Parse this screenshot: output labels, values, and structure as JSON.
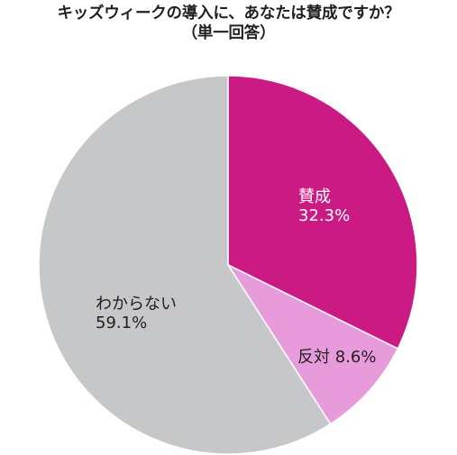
{
  "chart_data": {
    "type": "pie",
    "title": "キッズウィークの導入に、あなたは賛成ですか？",
    "subtitle": "（単一回答）",
    "unit": "%",
    "slices": [
      {
        "label": "賛成",
        "value": 32.3,
        "color": "#cc1a85",
        "label_color": "#ffffff",
        "value_text": "32.3%"
      },
      {
        "label": "反対",
        "value": 8.6,
        "color": "#e89bdb",
        "label_color": "#231f20",
        "value_text": "8.6%"
      },
      {
        "label": "わからない",
        "value": 59.1,
        "color": "#c6c7c8",
        "label_color": "#231f20",
        "value_text": "59.1%"
      }
    ]
  }
}
